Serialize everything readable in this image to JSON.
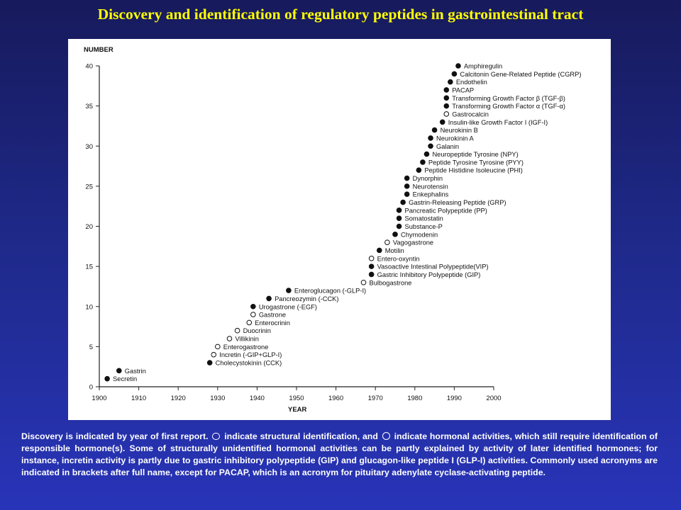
{
  "title": "Discovery and identification of regulatory peptides in gastrointestinal tract",
  "caption": {
    "part1": "Discovery is indicated by year of first report.",
    "filled_symbol": "filled-circle",
    "part2": "indicate structural identification, and",
    "open_symbol": "open-circle",
    "part3": "indicate hormonal activities, which still require identification of responsible hormone(s). Some of structurally unidentified hormonal activities can be partly explained by activity of later identified hormones; for instance, incretin activity is partly due to gastric inhibitory polypeptide (GIP) and glucagon-like peptide I (GLP-I) activities. Commonly used acronyms are indicated in brackets after full name, except for PACAP, which is an acronym for pituitary adenylate cyclase-activating peptide."
  },
  "colors": {
    "background": "#1f2a8c",
    "title": "#ffff00",
    "panel": "#ffffff",
    "caption": "#ffffff"
  },
  "chart_data": {
    "type": "scatter",
    "ylabel": "NUMBER",
    "xlabel": "YEAR",
    "xlim": [
      1900,
      2000
    ],
    "ylim": [
      0,
      40
    ],
    "xticks": [
      "1900",
      "1910",
      "1920",
      "1930",
      "1940",
      "1950",
      "1960",
      "1970",
      "1980",
      "1990",
      "2000"
    ],
    "yticks": [
      "0",
      "5",
      "10",
      "15",
      "20",
      "25",
      "30",
      "35",
      "40"
    ],
    "points": [
      {
        "x": 1902,
        "y": 1,
        "filled": true,
        "label": "Secretin"
      },
      {
        "x": 1905,
        "y": 2,
        "filled": true,
        "label": "Gastrin"
      },
      {
        "x": 1928,
        "y": 3,
        "filled": true,
        "label": "Cholecystokinin (CCK)"
      },
      {
        "x": 1929,
        "y": 4,
        "filled": false,
        "label": "Incretin  (-GIP+GLP-I)"
      },
      {
        "x": 1930,
        "y": 5,
        "filled": false,
        "label": "Enterogastrone"
      },
      {
        "x": 1933,
        "y": 6,
        "filled": false,
        "label": "Villikinin"
      },
      {
        "x": 1935,
        "y": 7,
        "filled": false,
        "label": "Duocrinin"
      },
      {
        "x": 1938,
        "y": 8,
        "filled": false,
        "label": "Enterocrinin"
      },
      {
        "x": 1939,
        "y": 9,
        "filled": false,
        "label": "Gastrone"
      },
      {
        "x": 1939,
        "y": 10,
        "filled": true,
        "label": "Urogastrone  (-EGF)"
      },
      {
        "x": 1943,
        "y": 11,
        "filled": true,
        "label": "Pancreozymin  (-CCK)"
      },
      {
        "x": 1948,
        "y": 12,
        "filled": true,
        "label": "Enteroglucagon  (-GLP-I)"
      },
      {
        "x": 1967,
        "y": 13,
        "filled": false,
        "label": "Bulbogastrone"
      },
      {
        "x": 1969,
        "y": 14,
        "filled": true,
        "label": "Gastric Inhibitory Polypeptide (GIP)"
      },
      {
        "x": 1969,
        "y": 15,
        "filled": true,
        "label": "Vasoactive Intestinal Polypeptide(VIP)"
      },
      {
        "x": 1969,
        "y": 16,
        "filled": false,
        "label": "Entero-oxyntin"
      },
      {
        "x": 1971,
        "y": 17,
        "filled": true,
        "label": "Motilin"
      },
      {
        "x": 1973,
        "y": 18,
        "filled": false,
        "label": "Vagogastrone"
      },
      {
        "x": 1975,
        "y": 19,
        "filled": true,
        "label": "Chymodenin"
      },
      {
        "x": 1976,
        "y": 20,
        "filled": true,
        "label": "Substance-P"
      },
      {
        "x": 1976,
        "y": 21,
        "filled": true,
        "label": "Somatostatin"
      },
      {
        "x": 1976,
        "y": 22,
        "filled": true,
        "label": "Pancreatic Polypeptide (PP)"
      },
      {
        "x": 1977,
        "y": 23,
        "filled": true,
        "label": "Gastrin-Releasing Peptide (GRP)"
      },
      {
        "x": 1978,
        "y": 24,
        "filled": true,
        "label": "Enkephalins"
      },
      {
        "x": 1978,
        "y": 25,
        "filled": true,
        "label": "Neurotensin"
      },
      {
        "x": 1978,
        "y": 26,
        "filled": true,
        "label": "Dynorphin"
      },
      {
        "x": 1981,
        "y": 27,
        "filled": true,
        "label": "Peptide Histidine Isoleucine (PHI)"
      },
      {
        "x": 1982,
        "y": 28,
        "filled": true,
        "label": "Peptide Tyrosine Tyrosine (PYY)"
      },
      {
        "x": 1983,
        "y": 29,
        "filled": true,
        "label": "Neuropeptide Tyrosine (NPY)"
      },
      {
        "x": 1984,
        "y": 30,
        "filled": true,
        "label": "Galanin"
      },
      {
        "x": 1984,
        "y": 31,
        "filled": true,
        "label": "Neurokinin A"
      },
      {
        "x": 1985,
        "y": 32,
        "filled": true,
        "label": "Neurokinin B"
      },
      {
        "x": 1987,
        "y": 33,
        "filled": true,
        "label": "Insulin-like Growth Factor I (IGF-I)"
      },
      {
        "x": 1988,
        "y": 34,
        "filled": false,
        "label": "Gastrocalcin"
      },
      {
        "x": 1988,
        "y": 35,
        "filled": true,
        "label": "Transforming Growth Factor α (TGF-α)"
      },
      {
        "x": 1988,
        "y": 36,
        "filled": true,
        "label": "Transforming Growth Factor β (TGF-β)"
      },
      {
        "x": 1988,
        "y": 37,
        "filled": true,
        "label": "PACAP"
      },
      {
        "x": 1989,
        "y": 38,
        "filled": true,
        "label": "Endothelin"
      },
      {
        "x": 1990,
        "y": 39,
        "filled": true,
        "label": "Calcitonin Gene-Related Peptide (CGRP)"
      },
      {
        "x": 1991,
        "y": 40,
        "filled": true,
        "label": "Amphiregulin"
      }
    ]
  }
}
